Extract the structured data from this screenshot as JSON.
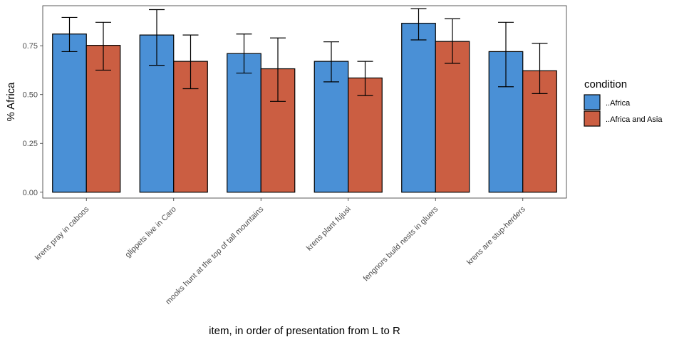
{
  "chart_data": {
    "type": "bar",
    "title": "",
    "xlabel": "item, in order of presentation from L to R",
    "ylabel": "% Africa",
    "ylim": [
      -0.03,
      0.955
    ],
    "yticks": [
      0,
      0.25,
      0.5,
      0.75
    ],
    "ytick_labels": [
      "0.00",
      "0.25",
      "0.50",
      "0.75"
    ],
    "grid": false,
    "legend_title": "condition",
    "legend_position": "right",
    "categories": [
      "krens pray in  caboos",
      "glippets live in  Caro",
      "mooks hunt  at the top of tall mountains",
      "krens plant  fujusi",
      "fengnors build nests in  gluers",
      "krens are  stup-herders"
    ],
    "series": [
      {
        "name": "..Africa",
        "color": "#4A90D6",
        "values": [
          0.81,
          0.805,
          0.71,
          0.67,
          0.865,
          0.72
        ],
        "err_low": [
          0.72,
          0.65,
          0.61,
          0.565,
          0.78,
          0.54
        ],
        "err_high": [
          0.895,
          0.935,
          0.81,
          0.77,
          0.94,
          0.87
        ]
      },
      {
        "name": "..Africa and Asia",
        "color": "#CB5E42",
        "values": [
          0.752,
          0.67,
          0.632,
          0.585,
          0.772,
          0.622
        ],
        "err_low": [
          0.625,
          0.53,
          0.465,
          0.495,
          0.66,
          0.505
        ],
        "err_high": [
          0.87,
          0.805,
          0.79,
          0.67,
          0.888,
          0.762
        ]
      }
    ]
  }
}
